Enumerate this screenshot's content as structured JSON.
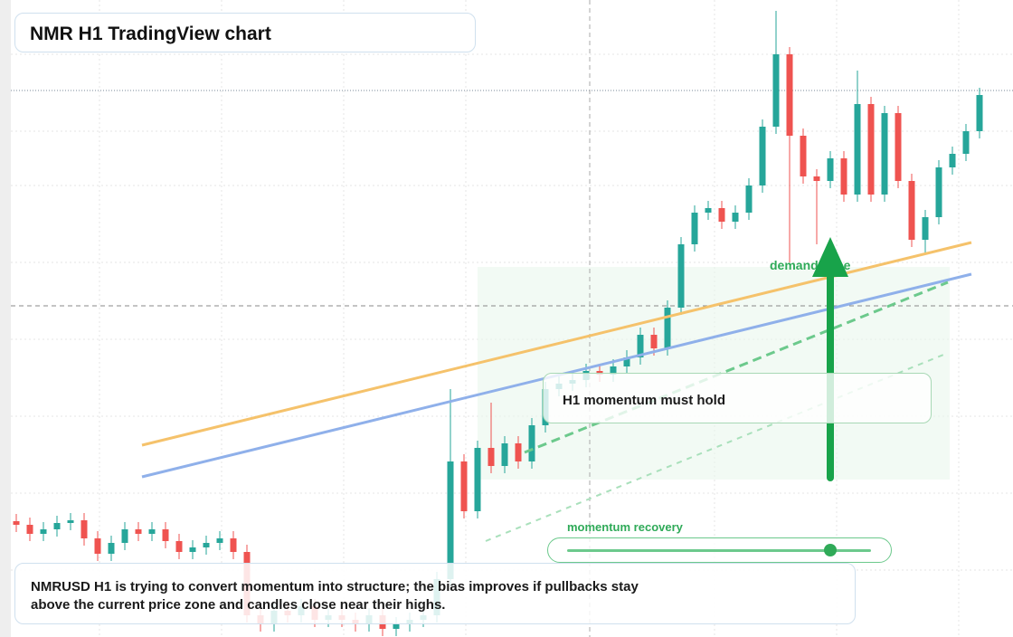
{
  "chart_data": {
    "type": "candlestick",
    "title": "NMR H1 TradingView chart",
    "annotations": {
      "demand_zone": "demand zone",
      "momentum_hold": "H1 momentum must hold",
      "momentum_recovery": "momentum recovery"
    },
    "note": "NMRUSD H1 is trying to convert momentum into structure; the bias improves if pullbacks stay above the current price zone and candles close near their highs.",
    "ylim": [
      0,
      704
    ],
    "up_color": "#26a69a",
    "down_color": "#ef5350",
    "open": [
      128,
      124,
      114,
      119,
      126,
      129,
      109,
      92,
      104,
      119,
      114,
      119,
      106,
      94,
      99,
      104,
      109,
      94,
      24,
      14,
      29,
      24,
      34,
      19,
      24,
      19,
      14,
      24,
      9,
      14,
      19,
      24,
      64,
      194,
      139,
      209,
      189,
      214,
      194,
      234,
      274,
      280,
      284,
      294,
      290,
      299,
      309,
      334,
      319,
      364,
      434,
      469,
      474,
      459,
      469,
      499,
      564,
      644,
      554,
      509,
      504,
      529,
      489,
      589,
      489,
      579,
      504,
      439,
      464,
      519,
      534,
      559
    ],
    "high": [
      136,
      132,
      127,
      134,
      137,
      137,
      117,
      112,
      127,
      127,
      127,
      127,
      114,
      107,
      112,
      117,
      117,
      102,
      32,
      37,
      37,
      42,
      42,
      32,
      32,
      27,
      32,
      32,
      22,
      27,
      32,
      72,
      274,
      202,
      217,
      259,
      222,
      222,
      242,
      282,
      288,
      292,
      302,
      302,
      307,
      317,
      342,
      342,
      372,
      442,
      477,
      482,
      482,
      477,
      507,
      572,
      692,
      652,
      562,
      517,
      537,
      537,
      626,
      597,
      587,
      587,
      512,
      472,
      527,
      542,
      567,
      607
    ],
    "low": [
      116,
      106,
      106,
      111,
      118,
      101,
      84,
      84,
      96,
      106,
      106,
      98,
      86,
      86,
      91,
      96,
      86,
      16,
      6,
      6,
      16,
      16,
      11,
      11,
      11,
      6,
      6,
      1,
      1,
      6,
      11,
      16,
      56,
      131,
      131,
      181,
      181,
      186,
      186,
      226,
      266,
      272,
      276,
      282,
      282,
      291,
      301,
      311,
      311,
      356,
      426,
      461,
      451,
      451,
      461,
      491,
      556,
      414,
      501,
      434,
      496,
      481,
      481,
      481,
      481,
      496,
      431,
      424,
      456,
      511,
      526,
      551
    ],
    "close": [
      124,
      114,
      119,
      126,
      129,
      109,
      92,
      104,
      119,
      114,
      119,
      106,
      94,
      99,
      104,
      109,
      94,
      24,
      14,
      29,
      24,
      34,
      19,
      24,
      19,
      14,
      24,
      9,
      14,
      19,
      24,
      64,
      194,
      139,
      209,
      189,
      214,
      194,
      234,
      274,
      280,
      284,
      294,
      290,
      299,
      309,
      334,
      319,
      364,
      434,
      469,
      474,
      459,
      469,
      499,
      564,
      644,
      554,
      509,
      504,
      529,
      489,
      589,
      489,
      579,
      504,
      439,
      464,
      519,
      534,
      559,
      599
    ]
  }
}
